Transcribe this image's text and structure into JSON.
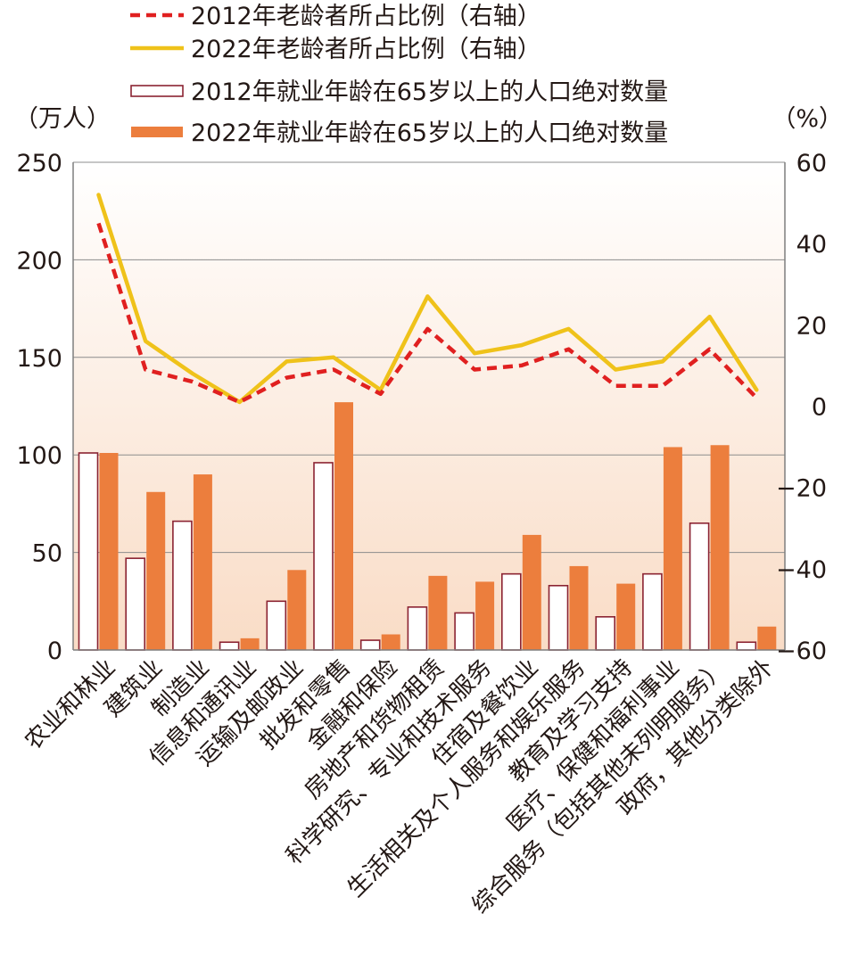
{
  "chart_data": {
    "type": "bar",
    "categories": [
      "农业和林业",
      "建筑业",
      "制造业",
      "信息和通讯业",
      "运输及邮政业",
      "批发和零售",
      "金融和保险",
      "房地产和货物租赁",
      "科学研究、专业和技术服务",
      "住宿及餐饮业",
      "生活相关及个人服务和娱乐服务",
      "教育及学习支持",
      "医疗、保健和福利事业",
      "综合服务（包括其他未列明服务）",
      "政府，其他分类除外"
    ],
    "series": [
      {
        "name": "2012年就业年龄在65岁以上的人口绝对数量",
        "type": "bar",
        "axis": "left",
        "values": [
          101,
          47,
          66,
          4,
          25,
          96,
          5,
          22,
          19,
          39,
          33,
          17,
          39,
          65,
          4
        ]
      },
      {
        "name": "2022年就业年龄在65岁以上的人口绝对数量",
        "type": "bar",
        "axis": "left",
        "values": [
          101,
          81,
          90,
          6,
          41,
          127,
          8,
          38,
          35,
          59,
          43,
          34,
          104,
          105,
          12
        ]
      },
      {
        "name": "2012年老龄者所占比例（右轴）",
        "type": "line",
        "axis": "right",
        "style": "dashed",
        "values": [
          45,
          9,
          6,
          1,
          7,
          9,
          3,
          19,
          9,
          10,
          14,
          5,
          5,
          14,
          2
        ]
      },
      {
        "name": "2022年老龄者所占比例（右轴）",
        "type": "line",
        "axis": "right",
        "style": "solid",
        "values": [
          52,
          16,
          8,
          1,
          11,
          12,
          4,
          27,
          13,
          15,
          19,
          9,
          11,
          22,
          4
        ]
      }
    ],
    "left_axis": {
      "unit": "（万人）",
      "ylim": [
        0,
        250
      ],
      "ticks": [
        "0",
        "50",
        "100",
        "150",
        "200",
        "250"
      ]
    },
    "right_axis": {
      "unit": "（%）",
      "ylim": [
        -60,
        60
      ],
      "ticks": [
        "−60",
        "−40",
        "−20",
        "0",
        "20",
        "40",
        "60"
      ]
    },
    "grid": true,
    "legend_position": "top"
  },
  "colors": {
    "bar_2012_outline": "#8b2332",
    "bar_2012_fill": "#ffffff",
    "bar_2022_fill": "#ec7e3d",
    "line_2012": "#e02020",
    "line_2022": "#efc21a",
    "plot_bg_top": "#ffffff",
    "plot_bg_bottom": "#f9dcc6",
    "grid": "#8c8c8c",
    "axis": "#7f7f7f",
    "text": "#231815"
  }
}
